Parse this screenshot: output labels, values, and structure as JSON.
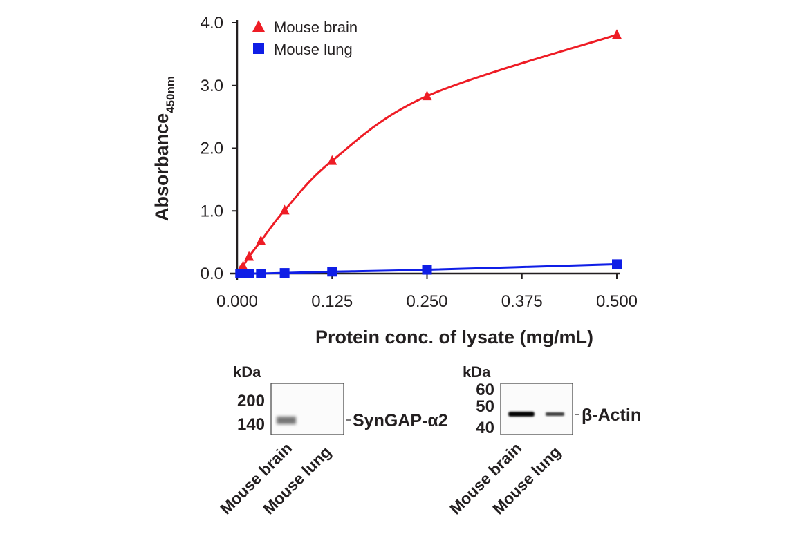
{
  "chart_data": {
    "type": "line",
    "title": "",
    "xlabel": "Protein conc. of lysate (mg/mL)",
    "ylabel": "Absorbance",
    "ylabel_sub": "450nm",
    "xlim": [
      0,
      0.5
    ],
    "ylim": [
      0,
      4.0
    ],
    "xticks": [
      0,
      0.125,
      0.25,
      0.375,
      0.5
    ],
    "xtick_labels": [
      "0.000",
      "0.125",
      "0.250",
      "0.375",
      "0.500"
    ],
    "yticks": [
      0,
      1,
      2,
      3,
      4
    ],
    "ytick_labels": [
      "0.0",
      "1.0",
      "2.0",
      "3.0",
      "4.0"
    ],
    "grid": false,
    "legend_position": "top-left",
    "series": [
      {
        "name": "Mouse brain",
        "color": "#ee1c25",
        "marker": "triangle",
        "x": [
          0.0039,
          0.0078,
          0.0156,
          0.03125,
          0.0625,
          0.125,
          0.25,
          0.5
        ],
        "y": [
          0.05,
          0.12,
          0.27,
          0.52,
          1.01,
          1.8,
          2.83,
          3.81
        ]
      },
      {
        "name": "Mouse lung",
        "color": "#0f1ee6",
        "marker": "square",
        "x": [
          0.0039,
          0.0078,
          0.0156,
          0.03125,
          0.0625,
          0.125,
          0.25,
          0.5
        ],
        "y": [
          0.0,
          0.0,
          0.0,
          0.0,
          0.01,
          0.03,
          0.06,
          0.15
        ]
      }
    ]
  },
  "blots": [
    {
      "kda_label": "kDa",
      "markers": [
        "200",
        "140"
      ],
      "target": "SynGAP-α2",
      "lanes": [
        "Mouse brain",
        "Mouse lung"
      ]
    },
    {
      "kda_label": "kDa",
      "markers": [
        "60",
        "50",
        "40"
      ],
      "target": "β-Actin",
      "lanes": [
        "Mouse brain",
        "Mouse lung"
      ]
    }
  ]
}
